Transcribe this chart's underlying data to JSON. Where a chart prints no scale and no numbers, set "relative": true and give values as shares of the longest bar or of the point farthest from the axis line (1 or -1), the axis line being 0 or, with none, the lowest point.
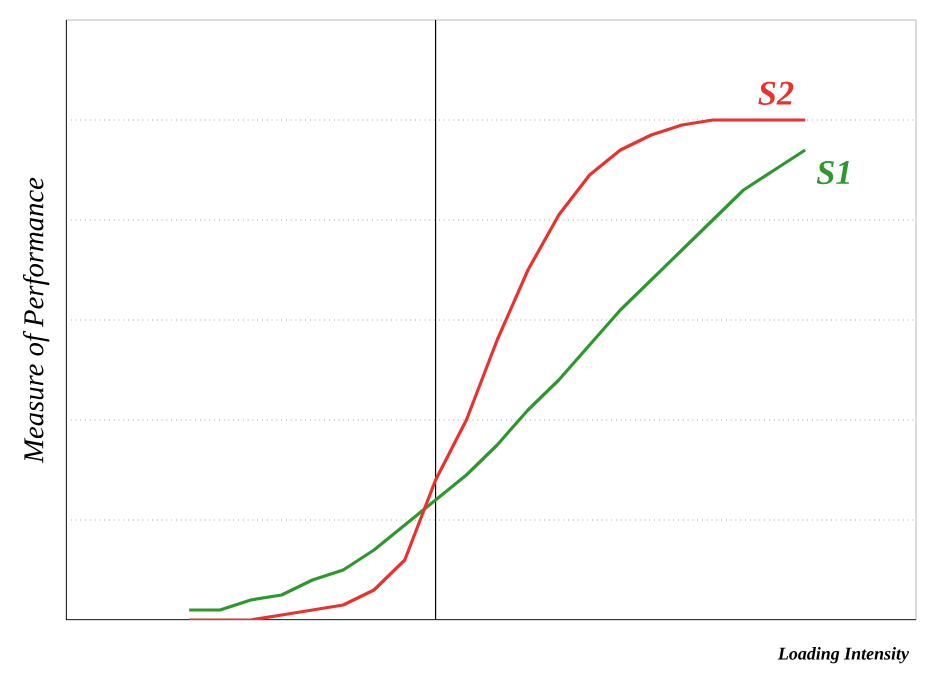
{
  "chart_data": {
    "type": "line",
    "relative": true,
    "xlabel": "Loading Intensity",
    "ylabel": "Measure of Performance",
    "categories": [
      null,
      null,
      null,
      null,
      null,
      null,
      null,
      null,
      null,
      null,
      null,
      null,
      null,
      null,
      null,
      null,
      null,
      null,
      null,
      null,
      null
    ],
    "series": [
      {
        "name": "S1",
        "color": "#2e982e",
        "values": [
          0.02,
          0.02,
          0.04,
          0.05,
          0.08,
          0.1,
          0.14,
          0.19,
          0.24,
          0.29,
          0.35,
          0.42,
          0.48,
          0.55,
          0.62,
          0.68,
          0.74,
          0.8,
          0.86,
          0.9,
          0.94
        ]
      },
      {
        "name": "S2",
        "color": "#e8322e",
        "values": [
          0.0,
          0.0,
          0.0,
          0.01,
          0.02,
          0.03,
          0.06,
          0.12,
          0.28,
          0.4,
          0.56,
          0.7,
          0.81,
          0.89,
          0.94,
          0.97,
          0.99,
          1,
          1,
          1,
          1
        ]
      }
    ],
    "grid": "y"
  }
}
